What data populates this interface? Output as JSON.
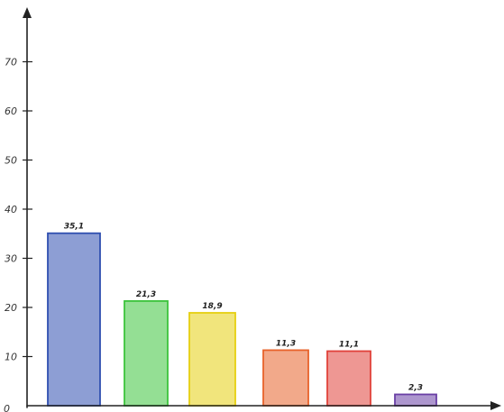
{
  "chart_data": {
    "type": "bar",
    "title": "",
    "xlabel": "",
    "ylabel": "",
    "categories": [
      "",
      "",
      "",
      "",
      "",
      ""
    ],
    "values": [
      35.1,
      21.3,
      18.9,
      11.3,
      11.1,
      2.3
    ],
    "data_labels": [
      "35,1",
      "21,3",
      "18,9",
      "11,3",
      "11,1",
      "2,3"
    ],
    "colors": [
      "#2f4fb0",
      "#3cc43c",
      "#e6cf10",
      "#e8622a",
      "#e0413a",
      "#6a3fa5"
    ],
    "ylim": [
      0,
      70
    ],
    "yticks": [
      10,
      20,
      30,
      40,
      50,
      60,
      70
    ],
    "ytick_labels": [
      "10",
      "20",
      "30",
      "40",
      "50",
      "60",
      "70"
    ],
    "origin_label": "0",
    "grid": false,
    "legend": "none"
  }
}
